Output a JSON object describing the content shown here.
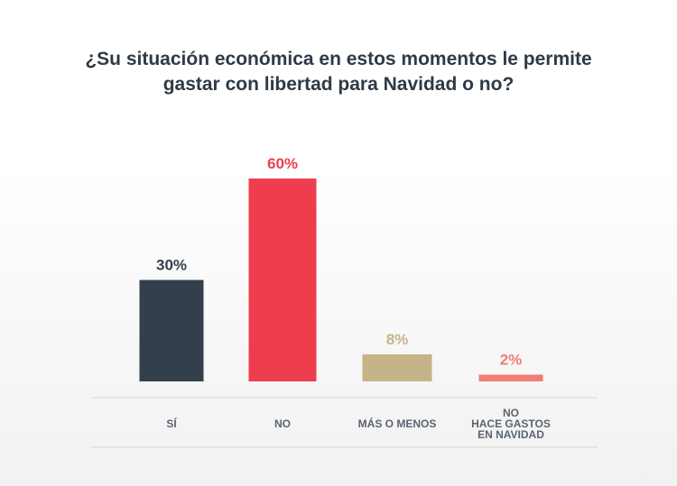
{
  "chart_data": {
    "type": "bar",
    "title_lines": [
      "¿Su situación económica en estos momentos le permite",
      "gastar con libertad para Navidad o no?"
    ],
    "categories": [
      {
        "lines": [
          "SÍ"
        ]
      },
      {
        "lines": [
          "NO"
        ]
      },
      {
        "lines": [
          "MÁS O MENOS"
        ]
      },
      {
        "lines": [
          "NO",
          "HACE GASTOS",
          "EN NAVIDAD"
        ]
      }
    ],
    "values": [
      30,
      60,
      8,
      2
    ],
    "value_labels": [
      "30%",
      "60%",
      "8%",
      "2%"
    ],
    "colors": [
      "#333f4a",
      "#ee3e4d",
      "#c5b487",
      "#f07e72"
    ],
    "label_colors": [
      "#333f4a",
      "#ee3e4d",
      "#c5b487",
      "#f07e72"
    ],
    "ylim": [
      0,
      60
    ]
  }
}
